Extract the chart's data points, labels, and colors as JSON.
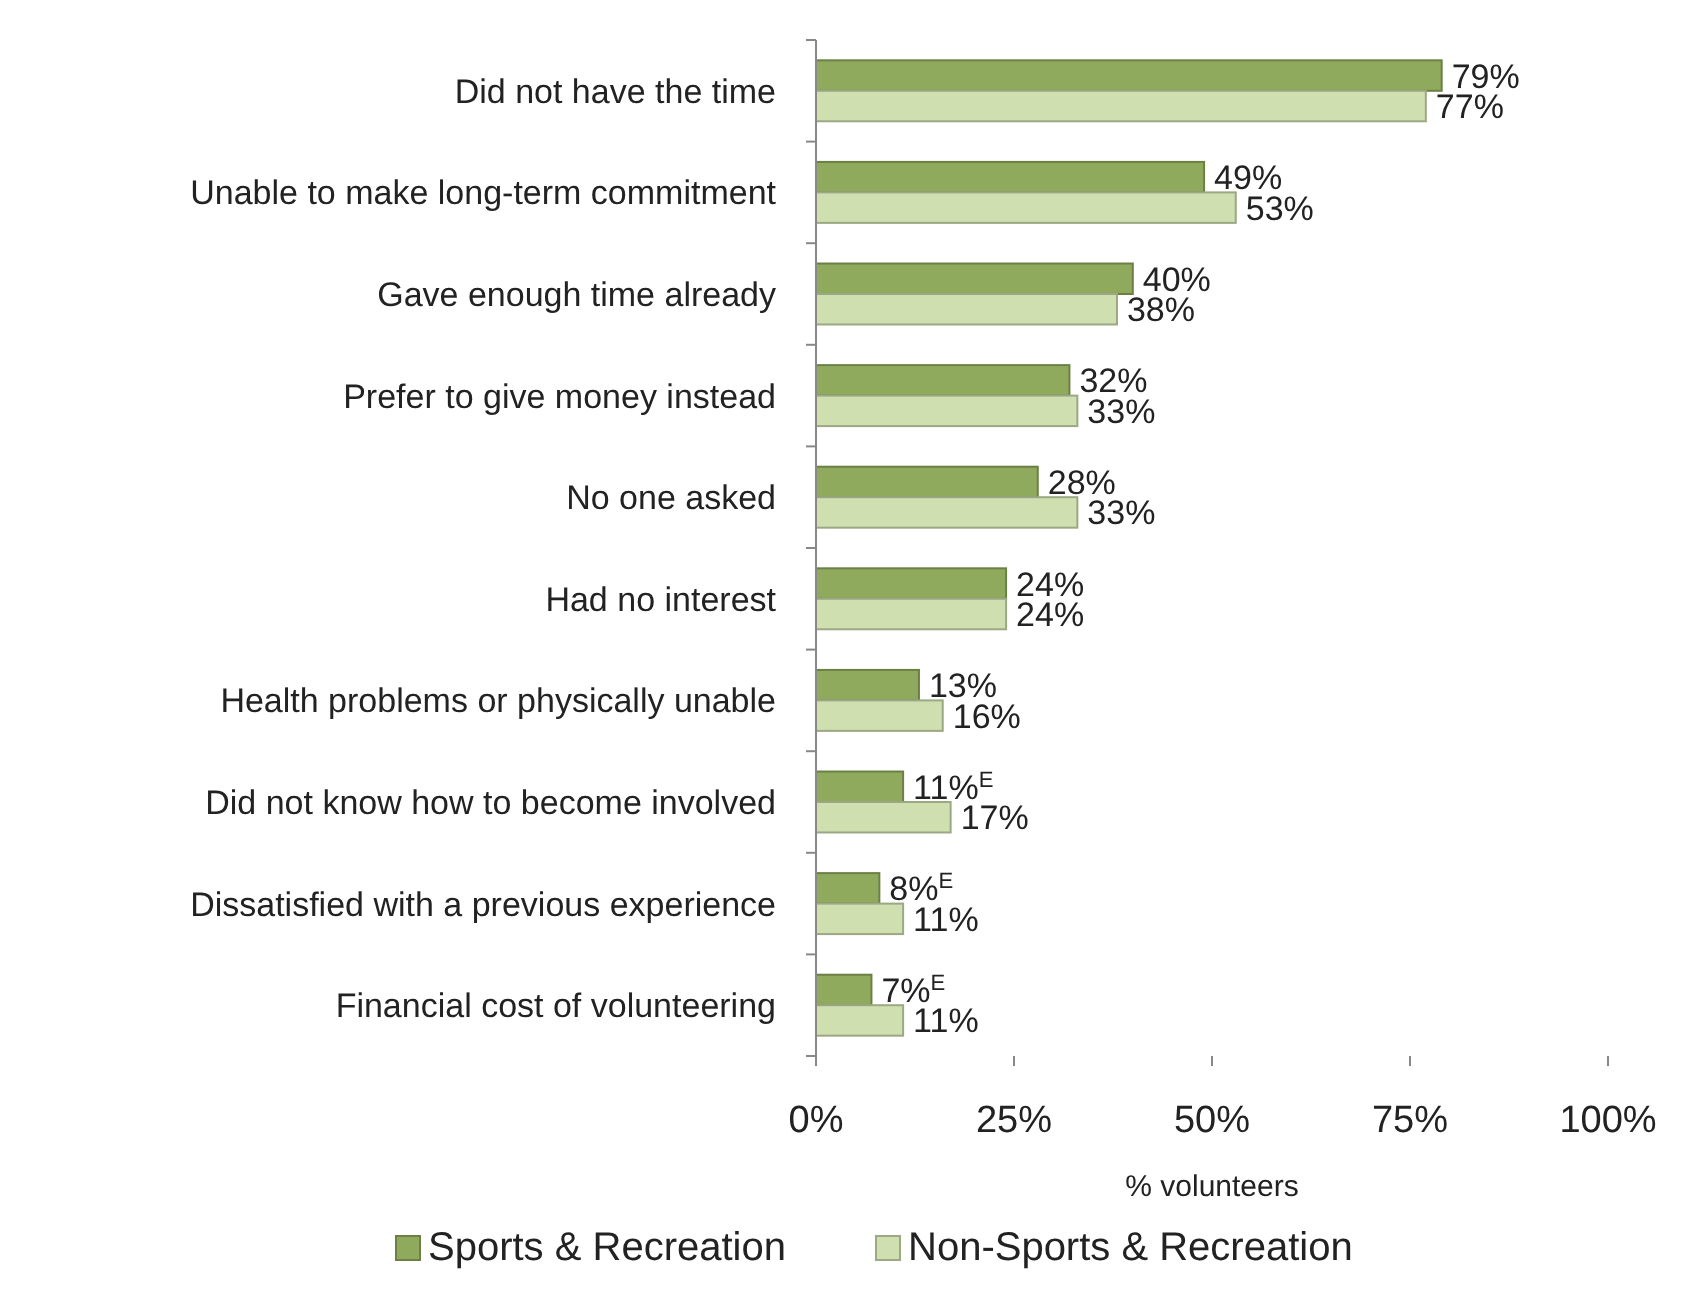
{
  "chart_data": {
    "type": "bar",
    "orientation": "horizontal",
    "categories": [
      "Did not have the time",
      "Unable to make long-term commitment",
      "Gave enough time already",
      "Prefer to give money instead",
      "No one asked",
      "Had no interest",
      "Health problems or physically unable",
      "Did not know how to become involved",
      "Dissatisfied with a previous experience",
      "Financial cost of volunteering"
    ],
    "series": [
      {
        "name": "Sports & Recreation",
        "color": "#8faa5c",
        "values": [
          79,
          49,
          40,
          32,
          28,
          24,
          13,
          11,
          8,
          7
        ],
        "value_labels": [
          "79%",
          "49%",
          "40%",
          "32%",
          "28%",
          "24%",
          "13%",
          "11%$^{E}$",
          "8%$^{E}$",
          "7%$^{E}$"
        ]
      },
      {
        "name": "Non-Sports & Recreation",
        "color": "#cfdfb0",
        "values": [
          77,
          53,
          38,
          33,
          33,
          24,
          16,
          17,
          11,
          11
        ],
        "value_labels": [
          "77%",
          "53%",
          "38%",
          "33%",
          "33%",
          "24%",
          "16%",
          "17%",
          "11%",
          "11%"
        ]
      }
    ],
    "xlim": [
      0,
      100
    ],
    "xticks": [
      {
        "value": 0,
        "label": "0%"
      },
      {
        "value": 25,
        "label": "25%"
      },
      {
        "value": 50,
        "label": "50%"
      },
      {
        "value": 75,
        "label": "75%"
      },
      {
        "value": 100,
        "label": "100%"
      }
    ],
    "xlabel": "% volunteers",
    "legend": "bottom",
    "grid": false
  }
}
